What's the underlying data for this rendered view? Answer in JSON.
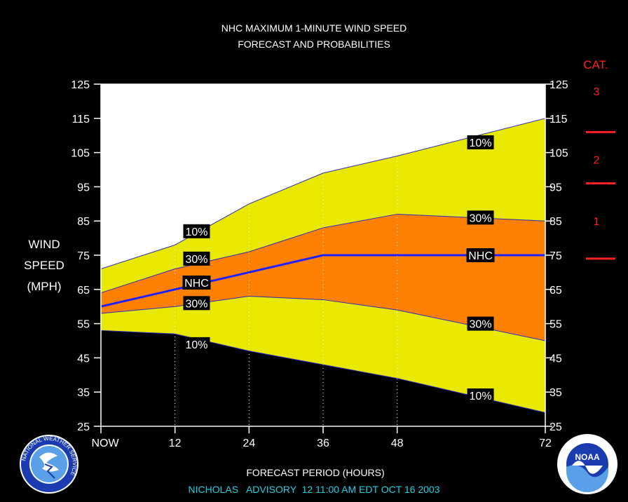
{
  "chart_data": {
    "type": "area",
    "title": "NHC MAXIMUM 1-MINUTE WIND SPEED",
    "subtitle": "FORECAST AND PROBABILITIES",
    "ylabel": [
      "WIND",
      "SPEED",
      "(MPH)"
    ],
    "xlabel": "FORECAST PERIOD (HOURS)",
    "footer": "NICHOLAS   ADVISORY  12 11:00 AM EDT OCT 16 2003",
    "xlim": [
      0,
      72
    ],
    "ylim": [
      25,
      125
    ],
    "x_ticks": [
      {
        "x": 0,
        "label": "NOW"
      },
      {
        "x": 12,
        "label": "12"
      },
      {
        "x": 24,
        "label": "24"
      },
      {
        "x": 36,
        "label": "36"
      },
      {
        "x": 48,
        "label": "48"
      },
      {
        "x": 72,
        "label": "72"
      }
    ],
    "y_ticks": [
      25,
      35,
      45,
      55,
      65,
      75,
      85,
      95,
      105,
      115,
      125
    ],
    "x_gridlines": [
      12,
      24,
      36,
      48
    ],
    "x": [
      0,
      12,
      24,
      36,
      48,
      72
    ],
    "series": [
      {
        "name": "10%",
        "role": "upper",
        "values": [
          71,
          78,
          90,
          99,
          104,
          115
        ],
        "color": "#e8e800"
      },
      {
        "name": "30%",
        "role": "upper",
        "values": [
          64,
          71,
          76,
          83,
          87,
          85
        ],
        "color": "#ff8000"
      },
      {
        "name": "NHC",
        "role": "forecast",
        "values": [
          60,
          65,
          70,
          75,
          75,
          75
        ],
        "color": "#2020ff"
      },
      {
        "name": "30%",
        "role": "lower",
        "values": [
          58,
          60,
          63,
          62,
          59,
          50
        ],
        "color": "#ff8000"
      },
      {
        "name": "10%",
        "role": "lower",
        "values": [
          53,
          52,
          47,
          43,
          39,
          29
        ],
        "color": "#e8e800"
      }
    ],
    "labels": [
      {
        "text": "10%",
        "x": 61.5,
        "y": 108
      },
      {
        "text": "30%",
        "x": 61.5,
        "y": 86
      },
      {
        "text": "NHC",
        "x": 61.5,
        "y": 75
      },
      {
        "text": "30%",
        "x": 61.5,
        "y": 55
      },
      {
        "text": "10%",
        "x": 61.5,
        "y": 34
      },
      {
        "text": "10%",
        "x": 15.5,
        "y": 82
      },
      {
        "text": "30%",
        "x": 15.5,
        "y": 74
      },
      {
        "text": "NHC",
        "x": 15.5,
        "y": 67
      },
      {
        "text": "30%",
        "x": 15.5,
        "y": 61
      },
      {
        "text": "10%",
        "x": 15.5,
        "y": 49
      }
    ],
    "categories_scale": {
      "title": "CAT.",
      "color": "#ff2020",
      "thresholds": [
        74,
        96,
        111
      ],
      "categories": [
        {
          "label": "1",
          "y": 85
        },
        {
          "label": "2",
          "y": 103
        },
        {
          "label": "3",
          "y": 123
        }
      ]
    },
    "colors": {
      "background": "#000000",
      "plot_bg": "#ffffff",
      "band_outer": "#e8e800",
      "band_inner": "#ff8000",
      "forecast_line": "#2020ff",
      "title_text": "#ffffff",
      "footer_text": "#20d0e0",
      "category_text": "#ff2020"
    }
  },
  "logos": {
    "left": "NATIONAL WEATHER SERVICE",
    "right": "NOAA"
  }
}
